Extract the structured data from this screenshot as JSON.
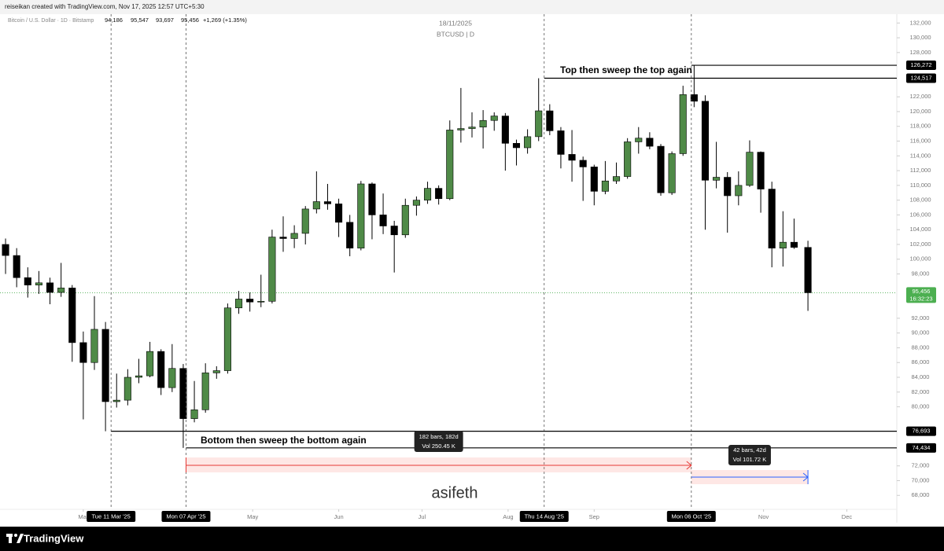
{
  "header": {
    "byline": "reiseikan created with TradingView.com, Nov 17, 2025 12:57 UTC+5:30"
  },
  "chart_data": {
    "type": "candlestick",
    "symbol": "Bitcoin / U.S. Dollar · 1D · Bitstamp",
    "ohlc_legend": [
      "94,186",
      "95,547",
      "93,697",
      "95,456",
      "+1,269 (+1.35%)"
    ],
    "watermark": [
      "18/11/2025",
      "BTCUSD | D"
    ],
    "x": [
      "2025-02-01",
      "2025-02-05",
      "2025-02-09",
      "2025-02-13",
      "2025-02-17",
      "2025-02-21",
      "2025-02-25",
      "2025-03-01",
      "2025-03-05",
      "2025-03-09",
      "2025-03-13",
      "2025-03-17",
      "2025-03-21",
      "2025-03-25",
      "2025-03-29",
      "2025-04-02",
      "2025-04-06",
      "2025-04-10",
      "2025-04-14",
      "2025-04-18",
      "2025-04-22",
      "2025-04-26",
      "2025-04-30",
      "2025-05-04",
      "2025-05-08",
      "2025-05-12",
      "2025-05-16",
      "2025-05-20",
      "2025-05-24",
      "2025-05-28",
      "2025-06-01",
      "2025-06-05",
      "2025-06-09",
      "2025-06-13",
      "2025-06-17",
      "2025-06-21",
      "2025-06-25",
      "2025-06-29",
      "2025-07-03",
      "2025-07-07",
      "2025-07-11",
      "2025-07-15",
      "2025-07-19",
      "2025-07-23",
      "2025-07-27",
      "2025-07-31",
      "2025-08-04",
      "2025-08-08",
      "2025-08-12",
      "2025-08-16",
      "2025-08-20",
      "2025-08-24",
      "2025-08-28",
      "2025-09-01",
      "2025-09-05",
      "2025-09-09",
      "2025-09-13",
      "2025-09-17",
      "2025-09-21",
      "2025-09-25",
      "2025-09-29",
      "2025-10-03",
      "2025-10-07",
      "2025-10-11",
      "2025-10-15",
      "2025-10-19",
      "2025-10-23",
      "2025-10-27",
      "2025-10-31",
      "2025-11-04",
      "2025-11-08",
      "2025-11-12",
      "2025-11-17"
    ],
    "open": [
      102000,
      100500,
      97500,
      96500,
      96800,
      95500,
      96100,
      88700,
      86000,
      90500,
      80700,
      80900,
      84000,
      84200,
      87500,
      82600,
      85200,
      78400,
      79600,
      84600,
      84900,
      93400,
      94600,
      94200,
      94300,
      103000,
      102800,
      103500,
      106800,
      107800,
      107500,
      105000,
      101500,
      110200,
      106000,
      104500,
      103300,
      107300,
      108000,
      109600,
      108200,
      117500,
      117700,
      117900,
      118800,
      119400,
      115700,
      115100,
      116600,
      120100,
      117400,
      114200,
      113400,
      112500,
      109200,
      110600,
      111200,
      115900,
      116400,
      115300,
      109000,
      114300,
      122300,
      121400,
      110700,
      111100,
      108600,
      110000,
      114500,
      109500,
      101500,
      102300,
      101600
    ],
    "high": [
      102800,
      101500,
      98900,
      98400,
      97500,
      99500,
      96500,
      90200,
      95000,
      91500,
      84500,
      85100,
      86500,
      88800,
      87800,
      88500,
      85800,
      83500,
      85900,
      85500,
      94000,
      95700,
      95500,
      97900,
      104000,
      105800,
      104600,
      107200,
      111900,
      110200,
      108200,
      106000,
      110600,
      110400,
      108900,
      105200,
      108200,
      108500,
      110500,
      110000,
      118800,
      123200,
      119900,
      120200,
      119900,
      119800,
      116200,
      117600,
      124517,
      121000,
      117900,
      117500,
      113900,
      112800,
      113300,
      113100,
      116400,
      117900,
      117200,
      115600,
      114600,
      123500,
      126272,
      122200,
      115900,
      111800,
      111900,
      116100,
      114600,
      110500,
      106500,
      105500,
      102500
    ],
    "low": [
      98000,
      96200,
      94800,
      95300,
      93900,
      94900,
      86100,
      78300,
      85000,
      76693,
      79900,
      80200,
      83200,
      84000,
      81600,
      82000,
      74434,
      77900,
      79200,
      83800,
      84500,
      92600,
      92900,
      93500,
      94000,
      101000,
      101500,
      102000,
      106200,
      106700,
      103000,
      100400,
      101200,
      102700,
      103400,
      98200,
      102900,
      105900,
      107500,
      107400,
      108000,
      115800,
      116500,
      115000,
      117400,
      112000,
      112700,
      114300,
      116000,
      116800,
      112300,
      110500,
      107900,
      107300,
      108800,
      110200,
      110900,
      114300,
      114900,
      108600,
      108700,
      114000,
      120600,
      104000,
      109600,
      103600,
      107300,
      109800,
      106300,
      98900,
      99000,
      101400,
      93000
    ],
    "close": [
      100500,
      97500,
      96500,
      96800,
      95500,
      96100,
      88700,
      86000,
      90500,
      80700,
      80900,
      84000,
      84200,
      87500,
      82600,
      85200,
      78400,
      79600,
      84600,
      84900,
      93400,
      94600,
      94200,
      94300,
      103000,
      102800,
      103500,
      106800,
      107800,
      107500,
      105000,
      101500,
      110200,
      106000,
      104500,
      103300,
      107300,
      108000,
      109600,
      108200,
      117500,
      117700,
      117900,
      118800,
      119400,
      115700,
      115100,
      116600,
      120100,
      117400,
      114200,
      113400,
      112500,
      109200,
      110600,
      111200,
      115900,
      116400,
      115300,
      109000,
      114300,
      122300,
      121400,
      110700,
      111100,
      108600,
      110000,
      114500,
      109500,
      101500,
      102300,
      101600,
      95456
    ],
    "up_color": "#4f8a47",
    "down_color": "#000000",
    "xlim": [
      "2025-01-30",
      "2025-12-19"
    ],
    "ylim": [
      64300,
      133200
    ],
    "xticks": [
      {
        "value": "2025-03-01",
        "label": "Mar"
      },
      {
        "value": "2025-05-01",
        "label": "May"
      },
      {
        "value": "2025-06-01",
        "label": "Jun"
      },
      {
        "value": "2025-07-01",
        "label": "Jul"
      },
      {
        "value": "2025-08-01",
        "label": "Aug"
      },
      {
        "value": "2025-09-01",
        "label": "Sep"
      },
      {
        "value": "2025-11-01",
        "label": "Nov"
      },
      {
        "value": "2025-12-01",
        "label": "Dec"
      }
    ],
    "yticks": [
      {
        "value": 68000,
        "label": "68,000"
      },
      {
        "value": 70000,
        "label": "70,000"
      },
      {
        "value": 72000,
        "label": "72,000"
      },
      {
        "value": 80000,
        "label": "80,000"
      },
      {
        "value": 82000,
        "label": "82,000"
      },
      {
        "value": 84000,
        "label": "84,000"
      },
      {
        "value": 86000,
        "label": "86,000"
      },
      {
        "value": 88000,
        "label": "88,000"
      },
      {
        "value": 90000,
        "label": "90,000"
      },
      {
        "value": 92000,
        "label": "92,000"
      },
      {
        "value": 98000,
        "label": "98,000"
      },
      {
        "value": 100000,
        "label": "100,000"
      },
      {
        "value": 102000,
        "label": "102,000"
      },
      {
        "value": 104000,
        "label": "104,000"
      },
      {
        "value": 106000,
        "label": "106,000"
      },
      {
        "value": 108000,
        "label": "108,000"
      },
      {
        "value": 110000,
        "label": "110,000"
      },
      {
        "value": 112000,
        "label": "112,000"
      },
      {
        "value": 114000,
        "label": "114,000"
      },
      {
        "value": 116000,
        "label": "116,000"
      },
      {
        "value": 118000,
        "label": "118,000"
      },
      {
        "value": 120000,
        "label": "120,000"
      },
      {
        "value": 122000,
        "label": "122,000"
      },
      {
        "value": 128000,
        "label": "128,000"
      },
      {
        "value": 130000,
        "label": "130,000"
      },
      {
        "value": 132000,
        "label": "132,000"
      }
    ],
    "last_price": {
      "value": 95456,
      "label": "95,456",
      "countdown": "16:32:23",
      "color": "#4caf50"
    },
    "levels": [
      {
        "value": 126272,
        "label": "126,272"
      },
      {
        "value": 124517,
        "label": "124,517"
      },
      {
        "value": 76693,
        "label": "76,693"
      },
      {
        "value": 74434,
        "label": "74,434"
      }
    ],
    "markers": [
      {
        "value": "2025-03-11",
        "label": "Tue 11 Mar '25"
      },
      {
        "value": "2025-04-07",
        "label": "Mon 07 Apr '25"
      },
      {
        "value": "2025-08-14",
        "label": "Thu 14 Aug '25"
      },
      {
        "value": "2025-10-06",
        "label": "Mon 06 Oct '25"
      }
    ],
    "annotations": [
      "Top then sweep the top again",
      "Bottom then sweep the bottom again",
      "asifeth"
    ],
    "ranges": [
      [
        "182 bars, 182d",
        "Vol 250.45 K"
      ],
      [
        "42 bars, 42d",
        "Vol 101.72 K"
      ]
    ]
  },
  "footer": {
    "brand": "TradingView"
  }
}
